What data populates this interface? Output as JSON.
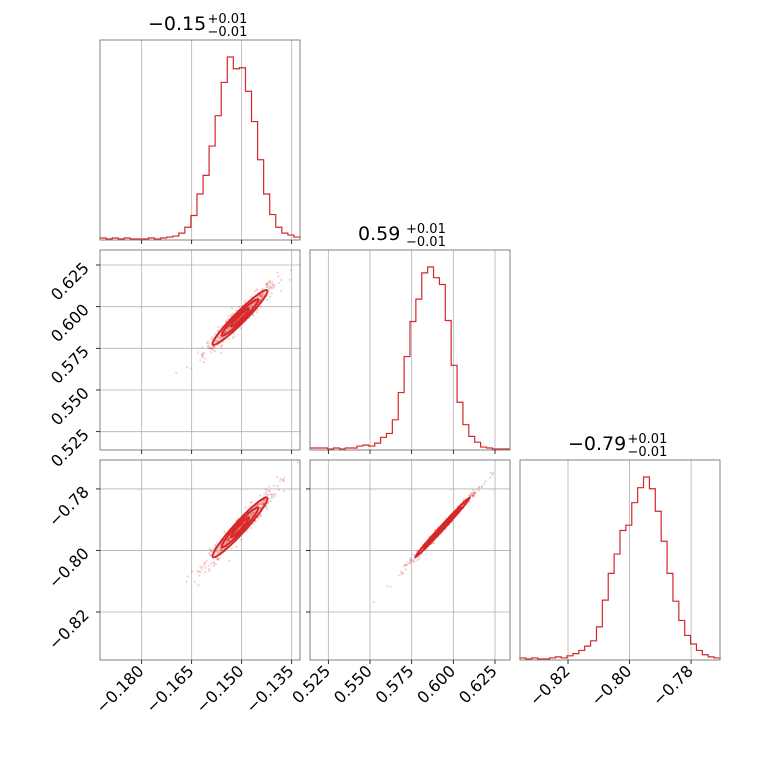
{
  "chart_data": {
    "type": "corner",
    "color": "#d62728",
    "parameters": [
      {
        "median": "−0.15",
        "plus": "+0.01",
        "minus": "−0.01",
        "range": [
          -0.1925,
          -0.1325
        ],
        "ticks": [
          -0.18,
          -0.165,
          -0.15,
          -0.135
        ],
        "tick_labels": [
          "−0.180",
          "−0.165",
          "−0.150",
          "−0.135"
        ],
        "mean": -0.1505,
        "sd": 0.0055
      },
      {
        "median": "0.59",
        "plus": "+0.01",
        "minus": "−0.01",
        "range": [
          0.514,
          0.634
        ],
        "ticks": [
          0.525,
          0.55,
          0.575,
          0.6,
          0.625
        ],
        "tick_labels": [
          "0.525",
          "0.550",
          "0.575",
          "0.600",
          "0.625"
        ],
        "mean": 0.5935,
        "sd": 0.011
      },
      {
        "median": "−0.79",
        "plus": "+0.01",
        "minus": "−0.01",
        "range": [
          -0.8356,
          -0.7706
        ],
        "ticks": [
          -0.82,
          -0.8,
          -0.78
        ],
        "tick_labels": [
          "−0.82",
          "−0.80",
          "−0.78"
        ],
        "mean": -0.7925,
        "sd": 0.0065
      }
    ],
    "histograms": [
      {
        "counts": [
          1,
          0,
          1,
          0,
          1,
          0,
          0,
          0,
          1,
          0,
          1,
          2,
          3,
          6,
          12,
          24,
          46,
          65,
          95,
          126,
          160,
          186,
          174,
          175,
          151,
          120,
          81,
          46,
          25,
          12,
          6,
          4,
          2
        ]
      },
      {
        "counts": [
          1,
          1,
          1,
          0,
          1,
          0,
          1,
          1,
          3,
          4,
          3,
          6,
          12,
          16,
          30,
          58,
          95,
          131,
          154,
          181,
          187,
          176,
          169,
          132,
          86,
          48,
          25,
          13,
          7,
          2,
          1,
          0,
          0,
          0
        ]
      },
      {
        "counts": [
          1,
          0,
          1,
          0,
          0,
          1,
          2,
          1,
          3,
          5,
          8,
          12,
          17,
          30,
          55,
          80,
          98,
          120,
          125,
          146,
          160,
          170,
          159,
          138,
          110,
          80,
          54,
          36,
          22,
          14,
          8,
          4,
          2,
          1
        ]
      }
    ],
    "grid": true
  }
}
